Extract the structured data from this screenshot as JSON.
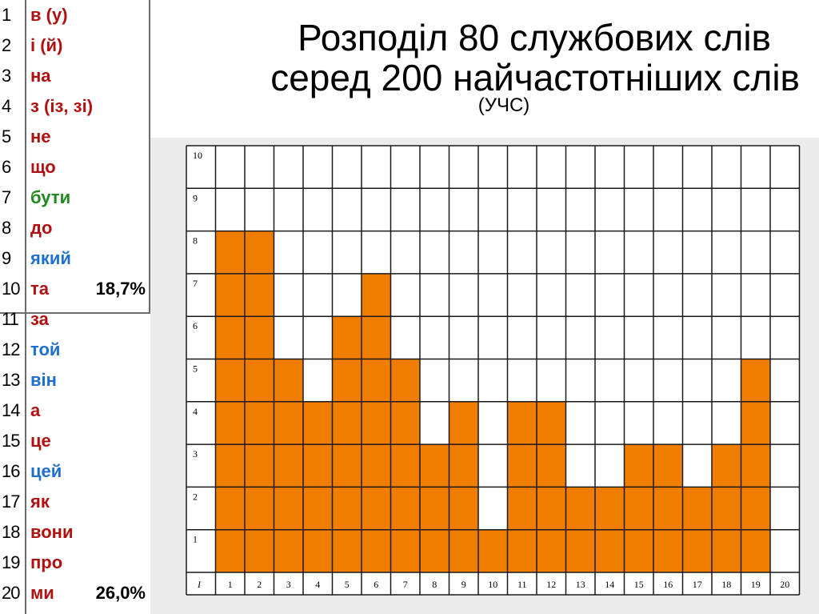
{
  "title_line1": "Розподіл 80 службових слів",
  "title_line2": "серед 200 найчастотніших слів",
  "subtitle": "(УЧС)",
  "colors": {
    "bar": "#f07c00",
    "grid": "#1a1a1a",
    "red": "#b01010",
    "blue": "#1f6fd0",
    "green": "#1f8a1f"
  },
  "word_list": [
    {
      "num": "1",
      "word": "в (у)",
      "color": "#b01010"
    },
    {
      "num": "2",
      "word": "і (й)",
      "color": "#b01010"
    },
    {
      "num": "3",
      "word": "на",
      "color": "#b01010"
    },
    {
      "num": "4",
      "word": "з (із, зі)",
      "color": "#b01010"
    },
    {
      "num": "5",
      "word": "не",
      "color": "#b01010"
    },
    {
      "num": "6",
      "word": "що",
      "color": "#b01010"
    },
    {
      "num": "7",
      "word": "бути",
      "color": "#1f8a1f"
    },
    {
      "num": "8",
      "word": "до",
      "color": "#b01010"
    },
    {
      "num": "9",
      "word": "який",
      "color": "#1f6fd0"
    },
    {
      "num": "10",
      "word": "та",
      "color": "#b01010",
      "pct": "18,7%"
    },
    {
      "num": "11",
      "word": "за",
      "color": "#b01010"
    },
    {
      "num": "12",
      "word": "той",
      "color": "#1f6fd0"
    },
    {
      "num": "13",
      "word": "він",
      "color": "#1f6fd0"
    },
    {
      "num": "14",
      "word": "а",
      "color": "#b01010"
    },
    {
      "num": "15",
      "word": "це",
      "color": "#b01010"
    },
    {
      "num": "16",
      "word": "цей",
      "color": "#1f6fd0"
    },
    {
      "num": "17",
      "word": "як",
      "color": "#b01010"
    },
    {
      "num": "18",
      "word": "вони",
      "color": "#b01010"
    },
    {
      "num": "19",
      "word": "про",
      "color": "#b01010"
    },
    {
      "num": "20",
      "word": "ми",
      "color": "#b01010",
      "pct": "26,0%"
    }
  ],
  "chart_data": {
    "type": "bar",
    "x_corner_label": "I",
    "categories": [
      "1",
      "2",
      "3",
      "4",
      "5",
      "6",
      "7",
      "8",
      "9",
      "10",
      "11",
      "12",
      "13",
      "14",
      "15",
      "16",
      "17",
      "18",
      "19",
      "20"
    ],
    "values": [
      8,
      8,
      5,
      4,
      6,
      7,
      5,
      3,
      4,
      1,
      4,
      4,
      2,
      2,
      3,
      3,
      2,
      3,
      5,
      0
    ],
    "y_ticks": [
      "1",
      "2",
      "3",
      "4",
      "5",
      "6",
      "7",
      "8",
      "9",
      "10"
    ],
    "ylim": [
      0,
      10
    ],
    "grid": true,
    "bar_color": "#f07c00"
  }
}
